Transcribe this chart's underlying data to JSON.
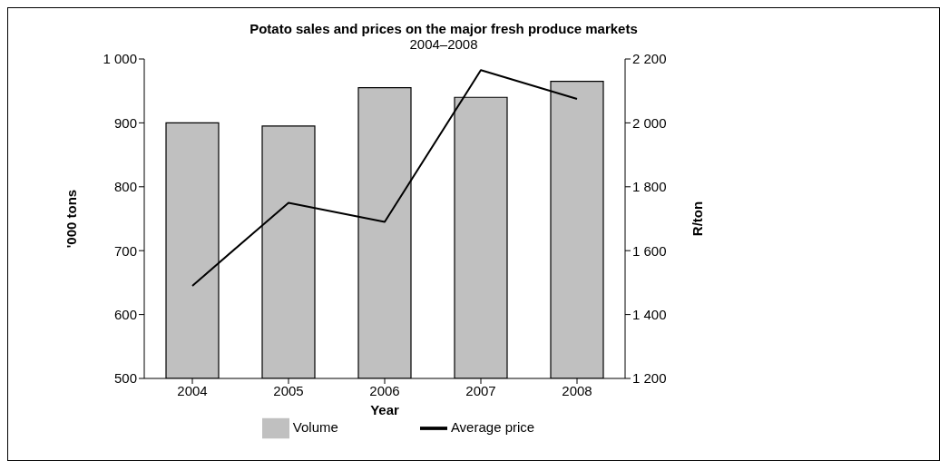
{
  "chart_data": {
    "type": "bar",
    "title": "Potato sales and prices on the major fresh produce markets",
    "subtitle": "2004–2008",
    "xlabel": "Year",
    "ylabel": "'000 tons",
    "y2label": "R/ton",
    "categories": [
      "2004",
      "2005",
      "2006",
      "2007",
      "2008"
    ],
    "series": [
      {
        "name": "Volume",
        "color": "#c0c0c0",
        "values": [
          900,
          895,
          955,
          940,
          965
        ]
      },
      {
        "name": "Average price",
        "type": "line",
        "axis": "y2",
        "color": "#000000",
        "values": [
          1490,
          1750,
          1690,
          2165,
          2075
        ]
      }
    ],
    "ylim": [
      500,
      1000
    ],
    "yticks": [
      500,
      600,
      700,
      800,
      900,
      {
        "value": 1000,
        "label": "1 000"
      }
    ],
    "y2lim": [
      1200,
      2200
    ],
    "y2ticks": [
      {
        "value": 1200,
        "label": "1 200"
      },
      {
        "value": 1400,
        "label": "1 400"
      },
      {
        "value": 1600,
        "label": "1 600"
      },
      {
        "value": 1800,
        "label": "1 800"
      },
      {
        "value": 2000,
        "label": "2 000"
      },
      {
        "value": 2200,
        "label": "2 200"
      }
    ],
    "grid": false,
    "legend": "bottom",
    "marker": "none",
    "line_style": "solid"
  }
}
